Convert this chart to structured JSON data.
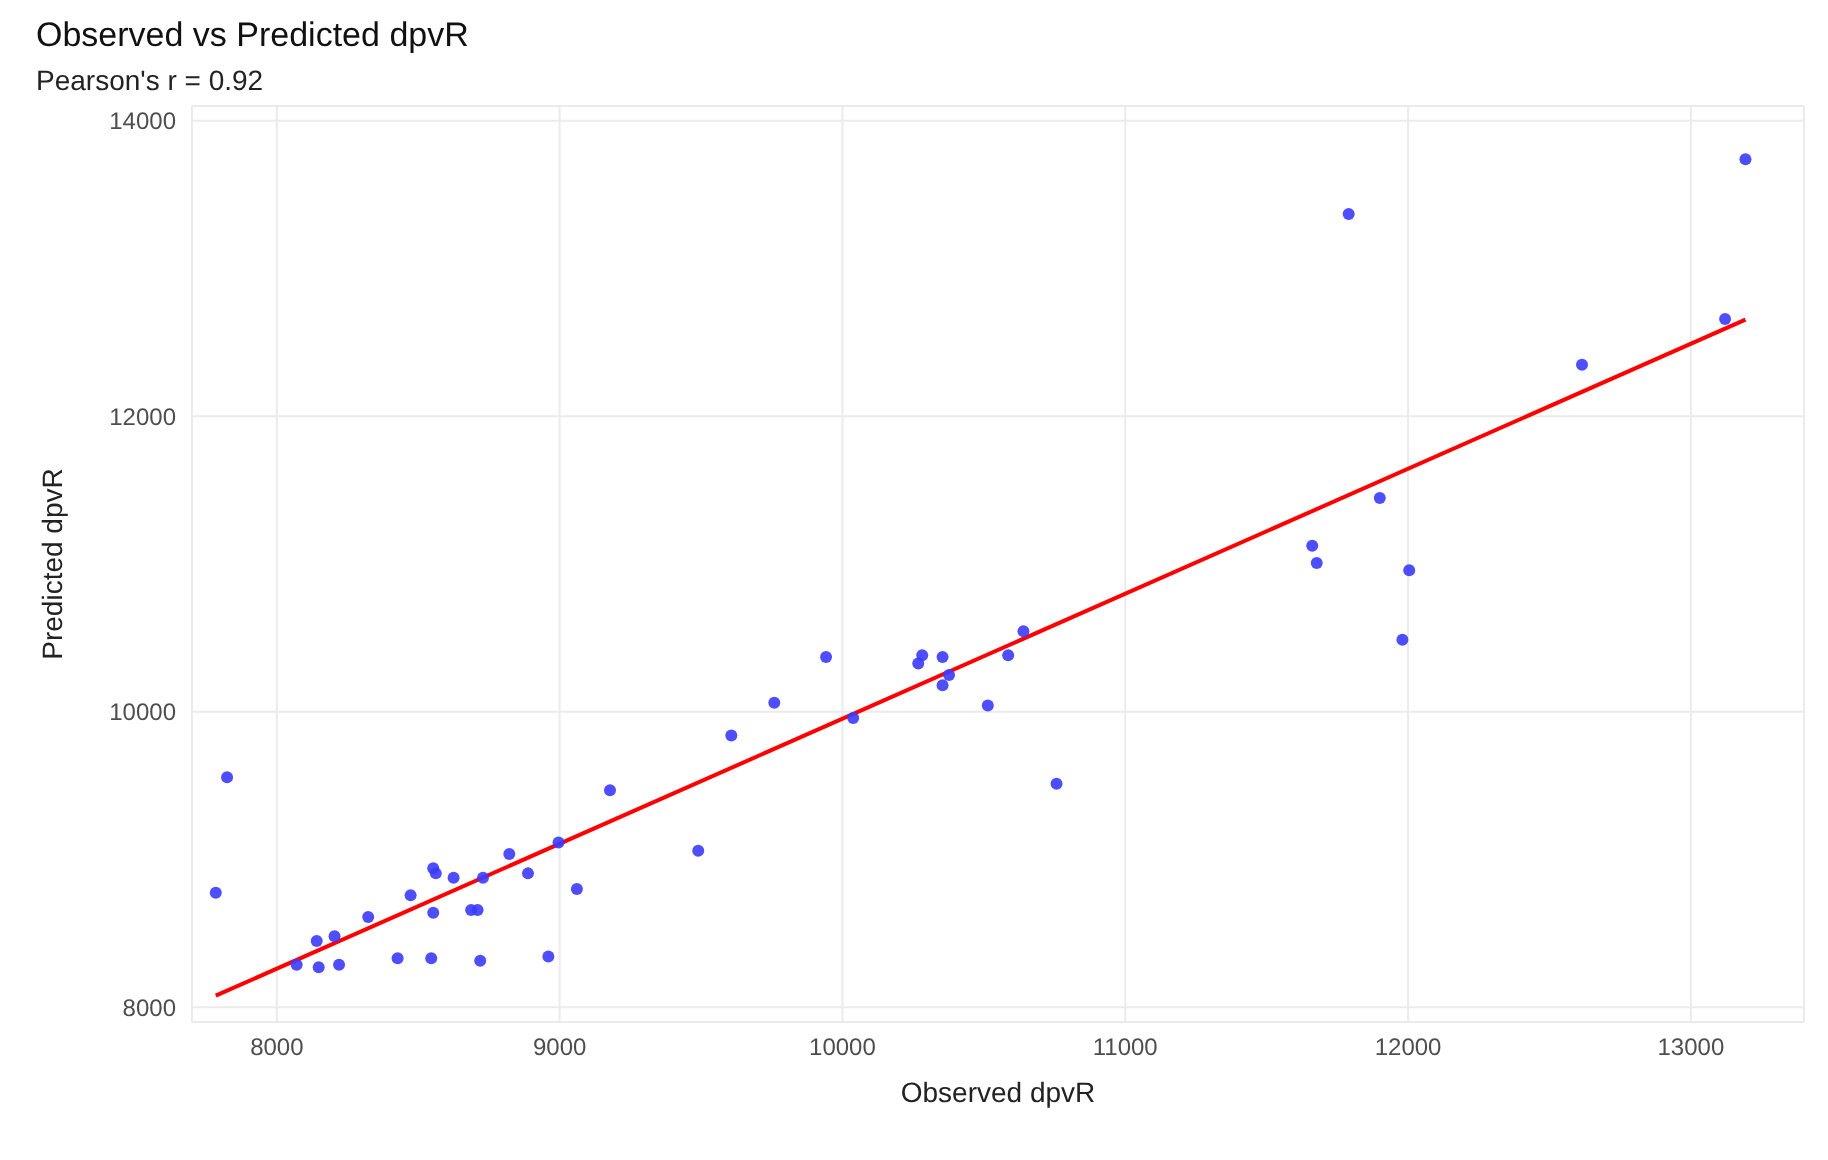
{
  "chart_data": {
    "type": "scatter",
    "title": "Observed vs Predicted dpvR",
    "subtitle": "Pearson's r = 0.92",
    "xlabel": "Observed dpvR",
    "ylabel": "Predicted dpvR",
    "xlim": [
      7700,
      13400
    ],
    "ylim": [
      7900,
      14100
    ],
    "xticks": [
      8000,
      9000,
      10000,
      11000,
      12000,
      13000
    ],
    "yticks": [
      8000,
      10000,
      12000,
      14000
    ],
    "grid": true,
    "marker": "circle",
    "series": [
      {
        "color": "#3b3bff",
        "x": [
          7824,
          7784,
          8070,
          8148,
          8220,
          8141,
          8204,
          8323,
          8427,
          8473,
          8546,
          8553,
          8553,
          8562,
          8625,
          8687,
          8710,
          8729,
          8719,
          8822,
          8888,
          8996,
          8960,
          9061,
          9178,
          9490,
          9607,
          9759,
          9942,
          10038,
          10268,
          10282,
          10354,
          10377,
          10354,
          10514,
          10586,
          10640,
          10757,
          11790,
          13193,
          13121,
          12615,
          11900,
          11661,
          11677,
          12004,
          11980
        ],
        "values": [
          9556,
          8775,
          8288,
          8270,
          8288,
          8448,
          8480,
          8610,
          8331,
          8758,
          8331,
          8640,
          8941,
          8906,
          8876,
          8658,
          8658,
          8876,
          8314,
          9037,
          8906,
          9115,
          8344,
          8801,
          9468,
          9059,
          9839,
          10061,
          10370,
          9957,
          10327,
          10383,
          10370,
          10248,
          10179,
          10043,
          10383,
          10545,
          9512,
          13369,
          13739,
          12658,
          12349,
          11447,
          11124,
          11007,
          10958,
          10488
        ]
      },
      {
        "type": "line",
        "color": "#ff0000",
        "marker": "none",
        "x": [
          7784,
          13193
        ],
        "values": [
          8078,
          12654
        ]
      }
    ]
  }
}
